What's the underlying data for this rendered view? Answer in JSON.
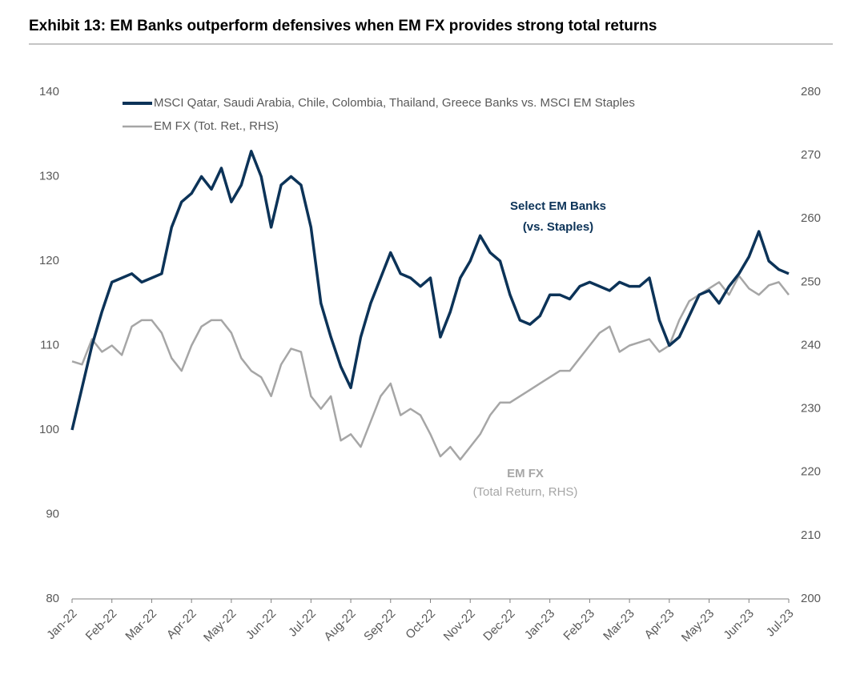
{
  "chart_data": {
    "type": "line",
    "title": "Exhibit 13: EM Banks outperform defensives when EM FX provides strong total returns",
    "xticks": [
      "Jan-22",
      "Feb-22",
      "Mar-22",
      "Apr-22",
      "May-22",
      "Jun-22",
      "Jul-22",
      "Aug-22",
      "Sep-22",
      "Oct-22",
      "Nov-22",
      "Dec-22",
      "Jan-23",
      "Feb-23",
      "Mar-23",
      "Apr-23",
      "May-23",
      "Jun-23",
      "Jul-23"
    ],
    "ylim": [
      80,
      140
    ],
    "yticks": [
      80,
      90,
      100,
      110,
      120,
      130,
      140
    ],
    "y2lim": [
      200,
      280
    ],
    "y2ticks": [
      200,
      210,
      220,
      230,
      240,
      250,
      260,
      270,
      280
    ],
    "series": [
      {
        "name": "MSCI Qatar, Saudi Arabia, Chile, Colombia, Thailand, Greece Banks vs. MSCI EM Staples",
        "color": "#0c3358",
        "values": [
          100,
          105,
          110,
          114,
          117.5,
          118,
          118.5,
          117.5,
          118,
          118.5,
          124,
          127,
          128,
          130,
          128.5,
          131,
          127,
          129,
          133,
          130,
          124,
          129,
          130,
          129,
          124,
          115,
          111,
          107.5,
          105,
          111,
          115,
          118,
          121,
          118.5,
          118,
          117,
          118,
          111,
          114,
          118,
          120,
          123,
          121,
          120,
          116,
          113,
          112.5,
          113.5,
          116,
          116,
          115.5,
          117,
          117.5,
          117,
          116.5,
          117.5,
          117,
          117,
          118,
          113,
          110,
          111,
          113.5,
          116,
          116.5,
          115,
          117,
          118.5,
          120.5,
          123.5,
          120,
          119,
          118.5
        ]
      },
      {
        "name": "EM FX (Tot. Ret., RHS)",
        "color": "#a6a6a6",
        "axis": "y2",
        "values": [
          237.5,
          237,
          241,
          239,
          240,
          238.5,
          243,
          244,
          244,
          242,
          238,
          236,
          240,
          243,
          244,
          244,
          242,
          238,
          236,
          235,
          232,
          237,
          239.5,
          239,
          232,
          230,
          232,
          225,
          226,
          224,
          228,
          232,
          234,
          229,
          230,
          229,
          226,
          222.5,
          224,
          222,
          224,
          226,
          229,
          231,
          231,
          232,
          233,
          234,
          235,
          236,
          236,
          238,
          240,
          242,
          243,
          239,
          240,
          240.5,
          241,
          239,
          240,
          244,
          247,
          248,
          249,
          250,
          248,
          251,
          249,
          248,
          249.5,
          250,
          248
        ]
      }
    ],
    "annotations": [
      {
        "text": "Select EM Banks",
        "color": "#0c3358"
      },
      {
        "text": "(vs. Staples)",
        "color": "#0c3358"
      },
      {
        "text": "EM FX",
        "color": "#a6a6a6"
      },
      {
        "text": "(Total Return, RHS)",
        "color": "#a6a6a6"
      }
    ]
  }
}
